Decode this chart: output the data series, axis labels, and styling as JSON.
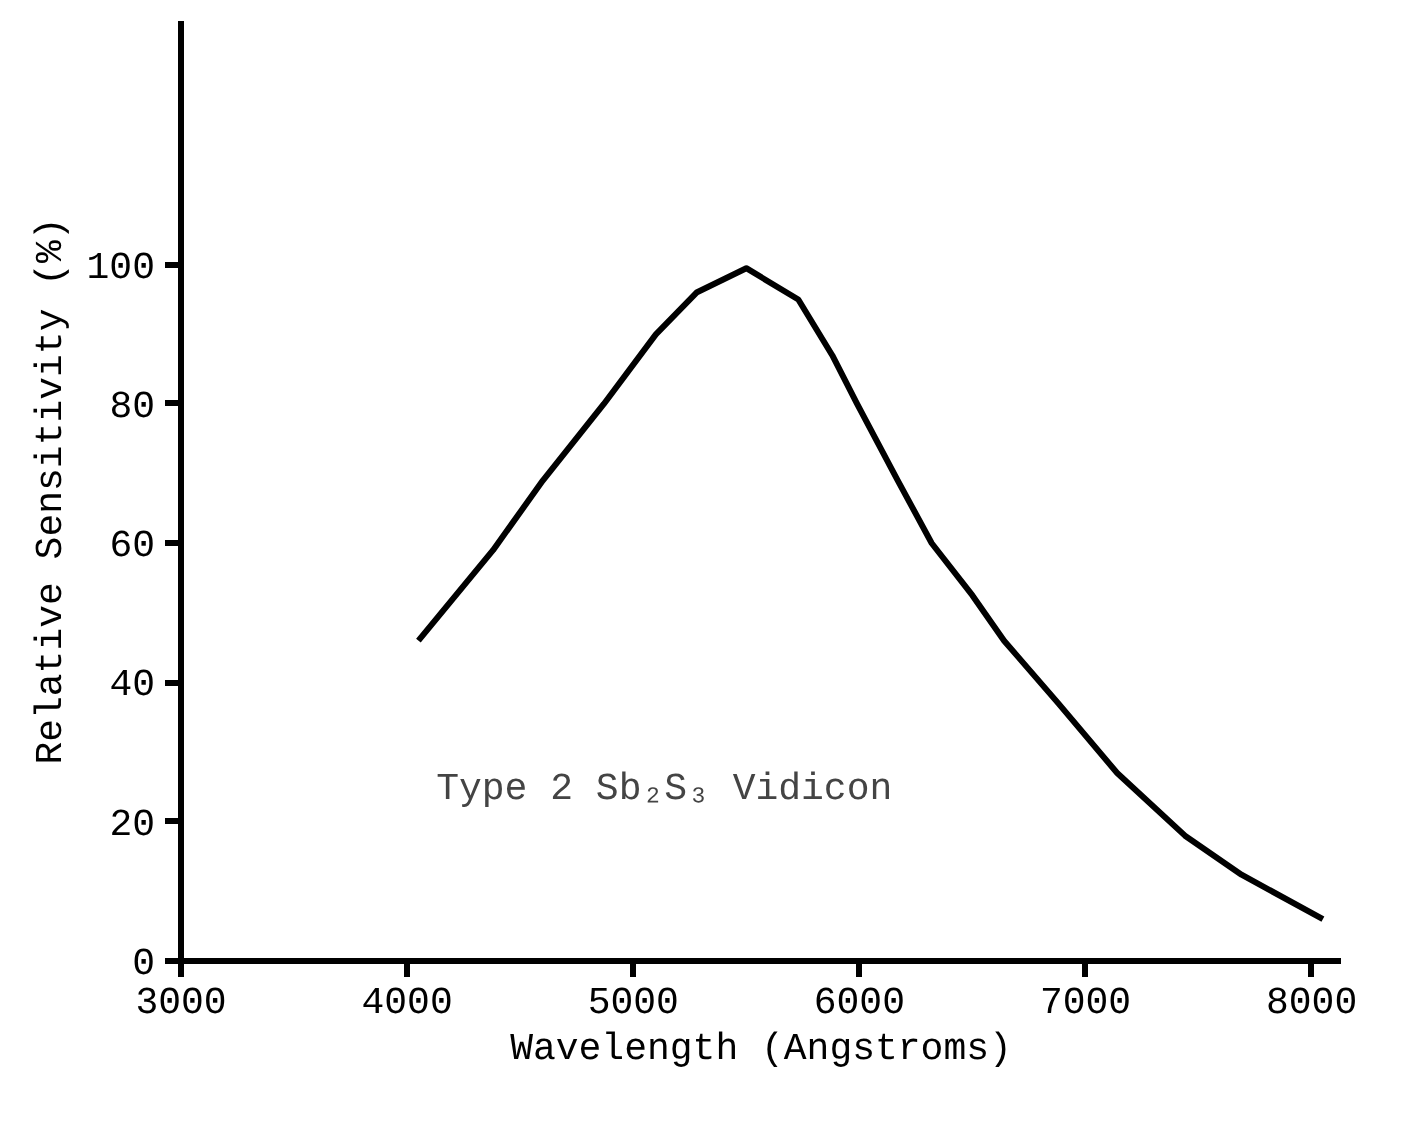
{
  "chart_data": {
    "type": "line",
    "xlabel": "Wavelength (Angstroms)",
    "ylabel": "Relative Sensitivity (%)",
    "annotations": [
      "Type 2 Sb₂S₃ Vidicon"
    ],
    "x": [
      4050,
      4380,
      4600,
      4870,
      5100,
      5280,
      5500,
      5730,
      5880,
      5990,
      6170,
      6320,
      6500,
      6640,
      6880,
      7140,
      7440,
      7690,
      8050
    ],
    "series": [
      {
        "color": "#000000",
        "values": [
          46,
          59,
          69,
          80,
          90,
          96,
          99.5,
          95,
          87,
          80,
          69,
          60,
          52.5,
          46,
          37,
          27,
          18,
          12.4,
          6
        ]
      }
    ],
    "xlim": [
      3000,
      8130
    ],
    "ylim": [
      0,
      135
    ],
    "xticks": [
      3000,
      4000,
      5000,
      6000,
      7000,
      8000
    ],
    "yticks": [
      0,
      20,
      40,
      60,
      80,
      100
    ],
    "grid": false,
    "marker": "none",
    "line_style": "solid"
  }
}
